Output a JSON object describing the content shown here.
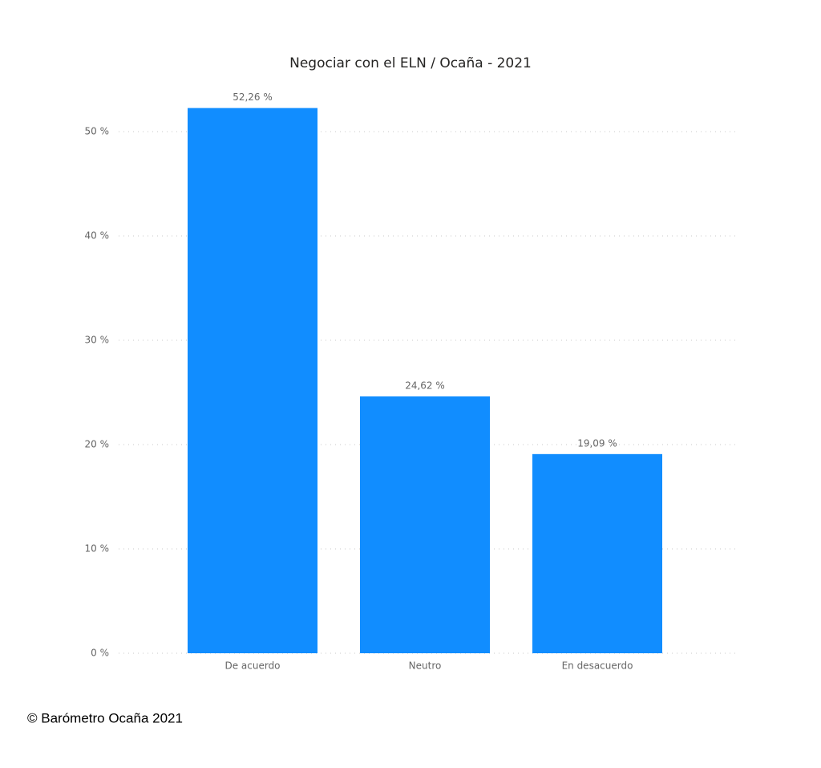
{
  "chart_data": {
    "type": "bar",
    "title": "Negociar con el ELN / Ocaña - 2021",
    "categories": [
      "De acuerdo",
      "Neutro",
      "En desacuerdo"
    ],
    "values": [
      52.26,
      24.62,
      19.09
    ],
    "value_labels": [
      "52,26 %",
      "24,62 %",
      "19,09 %"
    ],
    "color": "#118dff",
    "ylim": [
      0,
      55
    ],
    "yticks": [
      {
        "value": 0,
        "label": "0 %"
      },
      {
        "value": 10,
        "label": "10 %"
      },
      {
        "value": 20,
        "label": "20 %"
      },
      {
        "value": 30,
        "label": "30 %"
      },
      {
        "value": 40,
        "label": "40 %"
      },
      {
        "value": 50,
        "label": "50 %"
      }
    ],
    "grid": true,
    "source": "© Barómetro Ocaña 2021"
  }
}
